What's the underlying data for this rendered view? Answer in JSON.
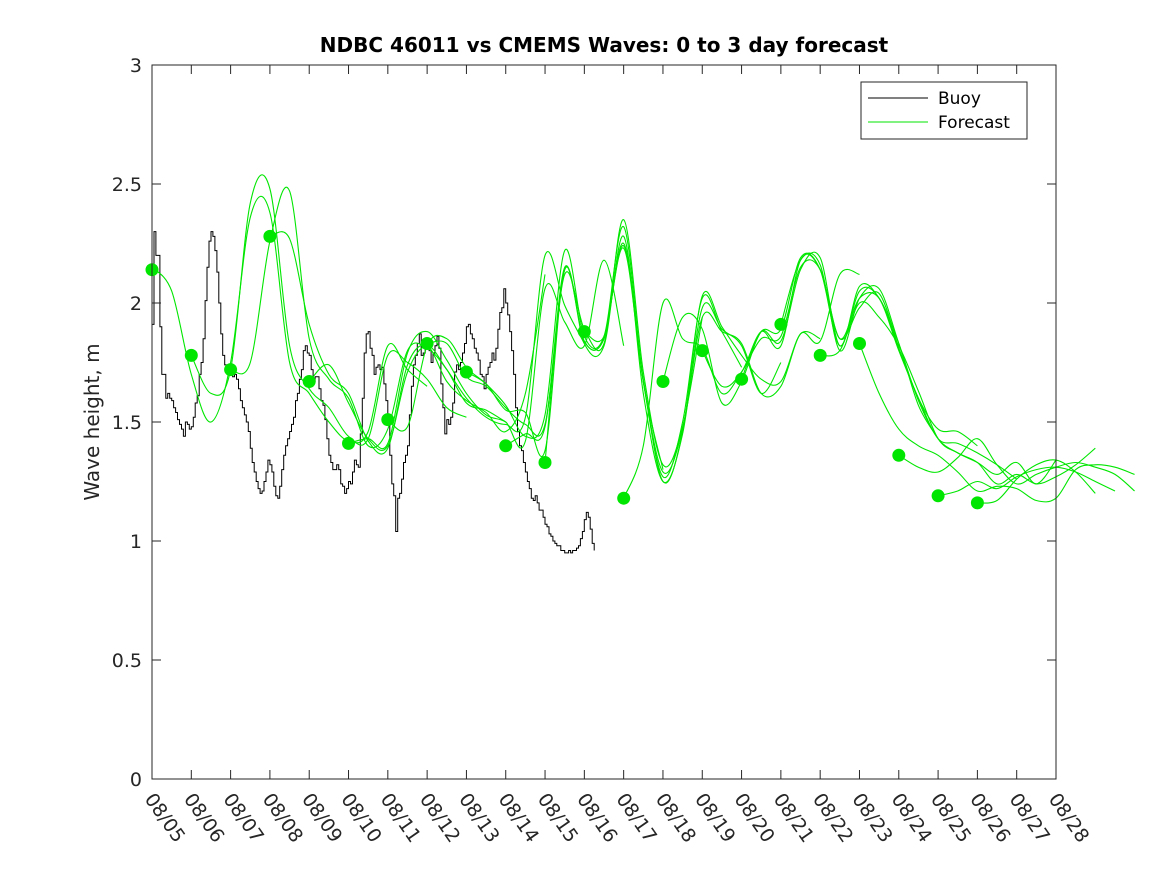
{
  "chart_data": {
    "type": "line",
    "title": "NDBC 46011 vs CMEMS Waves: 0 to 3 day forecast",
    "xlabel": "",
    "ylabel": "Wave height, m",
    "x_tick_labels": [
      "08/05",
      "08/06",
      "08/07",
      "08/08",
      "08/09",
      "08/10",
      "08/11",
      "08/12",
      "08/13",
      "08/14",
      "08/15",
      "08/16",
      "08/17",
      "08/18",
      "08/19",
      "08/20",
      "08/21",
      "08/22",
      "08/23",
      "08/24",
      "08/25",
      "08/26",
      "08/27",
      "08/28"
    ],
    "xlim": [
      0,
      23
    ],
    "ylim": [
      0,
      3
    ],
    "y_ticks": [
      0,
      0.5,
      1,
      1.5,
      2,
      2.5,
      3
    ],
    "y_tick_labels": [
      "0",
      "0.5",
      "1",
      "1.5",
      "2",
      "2.5",
      "3"
    ],
    "legend": {
      "position": "top-right",
      "entries": [
        {
          "label": "Buoy",
          "color": "#000000"
        },
        {
          "label": "Forecast",
          "color": "#00e600"
        }
      ]
    },
    "colors": {
      "buoy": "#000000",
      "forecast": "#00e600",
      "axis": "#262626"
    },
    "series": [
      {
        "name": "Buoy",
        "x_step_days": 0.05,
        "x_start": 0,
        "values": [
          1.91,
          2.3,
          2.2,
          2.2,
          1.9,
          1.7,
          1.7,
          1.6,
          1.62,
          1.6,
          1.59,
          1.56,
          1.54,
          1.51,
          1.49,
          1.47,
          1.44,
          1.5,
          1.49,
          1.47,
          1.48,
          1.52,
          1.58,
          1.61,
          1.7,
          1.75,
          1.85,
          2.01,
          2.15,
          2.26,
          2.3,
          2.28,
          2.22,
          2.13,
          2.0,
          1.87,
          1.78,
          1.74,
          1.72,
          1.72,
          1.71,
          1.69,
          1.7,
          1.68,
          1.64,
          1.59,
          1.56,
          1.53,
          1.5,
          1.46,
          1.39,
          1.33,
          1.29,
          1.25,
          1.22,
          1.2,
          1.21,
          1.25,
          1.29,
          1.34,
          1.32,
          1.29,
          1.23,
          1.19,
          1.18,
          1.23,
          1.3,
          1.36,
          1.4,
          1.43,
          1.46,
          1.49,
          1.52,
          1.59,
          1.62,
          1.68,
          1.72,
          1.8,
          1.82,
          1.79,
          1.78,
          1.72,
          1.67,
          1.69,
          1.69,
          1.64,
          1.59,
          1.57,
          1.51,
          1.43,
          1.36,
          1.33,
          1.3,
          1.3,
          1.32,
          1.3,
          1.24,
          1.23,
          1.2,
          1.22,
          1.25,
          1.24,
          1.29,
          1.34,
          1.32,
          1.31,
          1.45,
          1.6,
          1.79,
          1.87,
          1.88,
          1.81,
          1.78,
          1.7,
          1.73,
          1.74,
          1.72,
          1.73,
          1.66,
          1.59,
          1.51,
          1.36,
          1.24,
          1.19,
          1.04,
          1.18,
          1.2,
          1.26,
          1.33,
          1.36,
          1.4,
          1.53,
          1.65,
          1.74,
          1.78,
          1.83,
          1.87,
          1.78,
          1.79,
          1.81,
          1.83,
          1.8,
          1.75,
          1.79,
          1.82,
          1.86,
          1.81,
          1.66,
          1.56,
          1.45,
          1.51,
          1.49,
          1.52,
          1.58,
          1.71,
          1.74,
          1.72,
          1.75,
          1.79,
          1.83,
          1.9,
          1.91,
          1.87,
          1.85,
          1.81,
          1.79,
          1.76,
          1.7,
          1.69,
          1.64,
          1.7,
          1.73,
          1.75,
          1.79,
          1.76,
          1.81,
          1.89,
          1.96,
          1.98,
          2.06,
          2.0,
          1.95,
          1.88,
          1.8,
          1.7,
          1.56,
          1.46,
          1.4,
          1.38,
          1.33,
          1.29,
          1.25,
          1.22,
          1.18,
          1.17,
          1.19,
          1.16,
          1.13,
          1.13,
          1.1,
          1.07,
          1.06,
          1.03,
          1.02,
          1.0,
          0.99,
          0.98,
          0.98,
          0.96,
          0.96,
          0.95,
          0.95,
          0.96,
          0.95,
          0.96,
          0.96,
          0.97,
          0.98,
          1.01,
          1.04,
          1.09,
          1.12,
          1.1,
          1.05,
          0.99,
          0.96
        ]
      },
      {
        "name": "Forecast",
        "runs": [
          {
            "x_start": 0,
            "x_step_days": 0.5,
            "values": [
              2.15,
              2.05,
              1.7,
              1.5,
              1.75,
              2.36,
              2.38,
              1.75,
              1.62,
              1.5,
              1.42,
              1.46,
              1.82,
              1.72,
              1.65
            ]
          },
          {
            "x_start": 1,
            "x_step_days": 0.5,
            "values": [
              1.78,
              1.62,
              1.72,
              2.42,
              2.48,
              1.82,
              1.64,
              1.56,
              1.44,
              1.43,
              1.78,
              1.75,
              1.68,
              1.56,
              1.52
            ]
          },
          {
            "x_start": 2,
            "x_step_days": 0.5,
            "values": [
              1.72,
              1.75,
              2.26,
              2.47,
              1.85,
              1.68,
              1.6,
              1.4,
              1.47,
              1.8,
              1.81,
              1.72,
              1.58,
              1.55,
              1.5
            ]
          },
          {
            "x_start": 3,
            "x_step_days": 0.5,
            "values": [
              2.28,
              2.27,
              1.91,
              1.7,
              1.62,
              1.42,
              1.39,
              1.74,
              1.82,
              1.67,
              1.59,
              1.54,
              1.46,
              1.62,
              2.12
            ]
          },
          {
            "x_start": 4,
            "x_step_days": 0.5,
            "values": [
              1.67,
              1.74,
              1.58,
              1.43,
              1.4,
              1.71,
              1.82,
              1.72,
              1.6,
              1.52,
              1.49,
              1.52,
              2.2,
              1.99,
              1.83
            ]
          },
          {
            "x_start": 5,
            "x_step_days": 0.5,
            "values": [
              1.41,
              1.43,
              1.41,
              1.79,
              1.88,
              1.76,
              1.62,
              1.53,
              1.5,
              1.42,
              2.06,
              1.92,
              1.82,
              2.18,
              1.82
            ]
          },
          {
            "x_start": 6,
            "x_step_days": 0.5,
            "values": [
              1.51,
              1.48,
              1.82,
              1.85,
              1.73,
              1.66,
              1.57,
              1.44,
              1.53,
              2.22,
              1.86,
              1.86,
              2.32,
              1.67,
              1.3
            ]
          },
          {
            "x_start": 7,
            "x_step_days": 0.5,
            "values": [
              1.83,
              1.83,
              1.69,
              1.65,
              1.56,
              1.49,
              1.49,
              2.12,
              1.89,
              1.83,
              2.35,
              1.71,
              1.32,
              1.48,
              1.94
            ]
          },
          {
            "x_start": 8,
            "x_step_days": 0.5,
            "values": [
              1.71,
              1.66,
              1.55,
              1.54,
              1.38,
              2.14,
              1.84,
              1.85,
              2.25,
              1.67,
              1.27,
              1.5,
              2.02,
              1.88,
              1.73
            ]
          },
          {
            "x_start": 9,
            "x_step_days": 0.5,
            "values": [
              1.4,
              1.45,
              1.48,
              2.15,
              1.83,
              1.82,
              2.28,
              1.62,
              1.25,
              1.45,
              1.98,
              1.89,
              1.82,
              1.62,
              1.75
            ]
          },
          {
            "x_start": 10,
            "x_step_days": 0.5,
            "values": [
              1.33,
              2.14,
              1.84,
              1.85,
              2.24,
              1.68,
              1.25,
              1.46,
              2.03,
              1.9,
              1.78,
              1.68,
              1.67,
              1.87,
              1.85
            ]
          },
          {
            "x_start": 11,
            "x_step_days": 0.5,
            "values": [
              1.88,
              1.86,
              2.23,
              1.67,
              1.29,
              1.47,
              1.94,
              1.88,
              1.83,
              1.62,
              1.65,
              1.87,
              1.84,
              2.12,
              2.12
            ]
          },
          {
            "x_start": 12,
            "x_step_days": 0.5,
            "values": [
              1.18,
              1.4,
              2.0,
              1.85,
              1.81,
              1.62,
              1.71,
              1.85,
              1.86,
              2.15,
              2.14,
              1.85,
              1.98,
              2.04,
              1.81
            ]
          },
          {
            "x_start": 13,
            "x_step_days": 0.5,
            "values": [
              1.67,
              1.94,
              1.89,
              1.58,
              1.67,
              1.88,
              1.84,
              2.14,
              2.19,
              1.82,
              2.07,
              2.02,
              1.83,
              1.57,
              1.43
            ]
          },
          {
            "x_start": 14,
            "x_step_days": 0.5,
            "values": [
              1.8,
              1.65,
              1.71,
              1.88,
              1.82,
              2.18,
              2.14,
              1.85,
              2.02,
              2.02,
              1.81,
              1.6,
              1.47,
              1.46,
              1.4
            ]
          },
          {
            "x_start": 15,
            "x_step_days": 0.5,
            "values": [
              1.68,
              1.88,
              1.89,
              2.19,
              2.14,
              1.82,
              2.05,
              2.02,
              1.8,
              1.6,
              1.43,
              1.41,
              1.37,
              1.32,
              1.26
            ]
          },
          {
            "x_start": 16,
            "x_step_days": 0.5,
            "values": [
              1.91,
              2.18,
              2.16,
              1.8,
              2.02,
              2.06,
              1.83,
              1.59,
              1.43,
              1.37,
              1.33,
              1.28,
              1.33,
              1.24,
              1.34
            ]
          },
          {
            "x_start": 17,
            "x_step_days": 0.5,
            "values": [
              1.78,
              1.8,
              2.0,
              1.94,
              1.82,
              1.63,
              1.43,
              1.37,
              1.33,
              1.24,
              1.28,
              1.24,
              1.27,
              1.32,
              1.39
            ]
          },
          {
            "x_start": 18,
            "x_step_days": 0.5,
            "values": [
              1.83,
              1.62,
              1.47,
              1.4,
              1.36,
              1.29,
              1.21,
              1.23,
              1.22,
              1.17,
              1.18,
              1.3,
              1.32,
              1.31,
              1.28
            ]
          },
          {
            "x_start": 19,
            "x_step_days": 0.5,
            "values": [
              1.36,
              1.31,
              1.29,
              1.35,
              1.43,
              1.32,
              1.24,
              1.28,
              1.31,
              1.33,
              1.31,
              1.28,
              1.21
            ]
          },
          {
            "x_start": 20,
            "x_step_days": 0.5,
            "values": [
              1.19,
              1.21,
              1.25,
              1.22,
              1.27,
              1.3,
              1.31,
              1.29,
              1.25,
              1.21
            ]
          },
          {
            "x_start": 21,
            "x_step_days": 0.5,
            "values": [
              1.16,
              1.17,
              1.26,
              1.32,
              1.34,
              1.29,
              1.2
            ]
          }
        ]
      },
      {
        "name": "Forecast analysis points",
        "x": [
          0,
          1,
          2,
          3,
          4,
          5,
          6,
          7,
          8,
          9,
          10,
          11,
          12,
          13,
          14,
          15,
          16,
          17,
          18,
          19,
          20,
          21
        ],
        "values": [
          2.14,
          1.78,
          1.72,
          2.28,
          1.67,
          1.41,
          1.51,
          1.83,
          1.71,
          1.4,
          1.33,
          1.88,
          1.18,
          1.67,
          1.8,
          1.68,
          1.91,
          1.78,
          1.83,
          1.36,
          1.19,
          1.16
        ]
      }
    ]
  }
}
